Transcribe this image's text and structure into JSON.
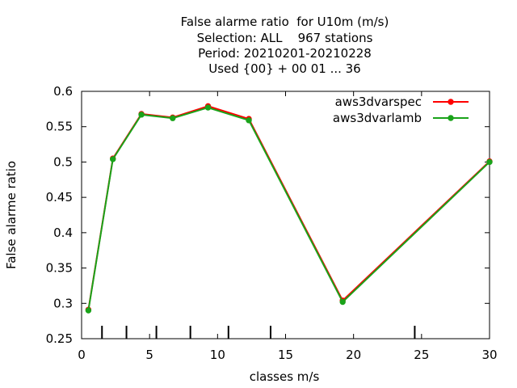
{
  "chart_data": {
    "type": "line",
    "title_lines": [
      "False alarme ratio  for U10m (m/s)",
      "Selection: ALL    967 stations",
      "Period: 20210201-20210228",
      "Used {00} + 00 01 ... 36"
    ],
    "xlabel": "classes m/s",
    "ylabel": "False alarme ratio",
    "xlim": [
      0,
      30
    ],
    "ylim": [
      0.25,
      0.6
    ],
    "x_ticks": [
      0,
      5,
      10,
      15,
      20,
      25,
      30
    ],
    "x_tick_labels": [
      "0",
      "5",
      "10",
      "15",
      "20",
      "25",
      "30"
    ],
    "y_ticks": [
      0.25,
      0.3,
      0.35,
      0.4,
      0.45,
      0.5,
      0.55,
      0.6
    ],
    "y_tick_labels": [
      "0.25",
      "0.3",
      "0.35",
      "0.4",
      "0.45",
      "0.5",
      "0.55",
      "0.6"
    ],
    "class_boundaries": [
      1.5,
      3.3,
      5.5,
      8.0,
      10.8,
      13.9,
      24.5
    ],
    "grid": false,
    "legend_position": "top-right",
    "series": [
      {
        "name": "aws3dvarspec",
        "color": "#ff0000",
        "x": [
          0.5,
          2.3,
          4.4,
          6.7,
          9.3,
          12.3,
          19.2,
          30
        ],
        "y": [
          0.291,
          0.505,
          0.568,
          0.563,
          0.579,
          0.561,
          0.304,
          0.501
        ]
      },
      {
        "name": "aws3dvarlamb",
        "color": "#1aa31a",
        "x": [
          0.5,
          2.3,
          4.4,
          6.7,
          9.3,
          12.3,
          19.2,
          30
        ],
        "y": [
          0.29,
          0.504,
          0.567,
          0.562,
          0.577,
          0.559,
          0.302,
          0.5
        ]
      }
    ]
  }
}
